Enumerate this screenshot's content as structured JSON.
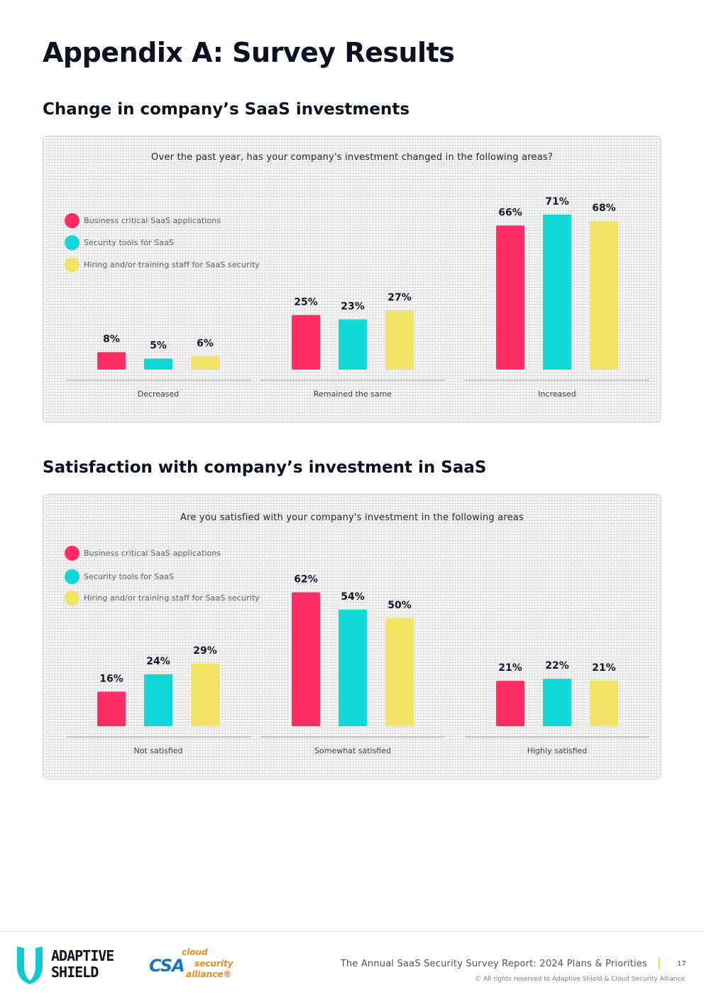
{
  "page_title": "Appendix A: Survey Results",
  "legend": {
    "items": [
      {
        "label": "Business critical SaaS applications",
        "color": "#ff2d64"
      },
      {
        "label": "Security tools for SaaS",
        "color": "#10d8d6"
      },
      {
        "label": "Hiring and/or training staff for SaaS security",
        "color": "#f2e366"
      }
    ]
  },
  "sections": [
    {
      "title": "Change in company’s SaaS investments"
    },
    {
      "title": "Satisfaction with company’s investment in SaaS"
    }
  ],
  "chart_data": [
    {
      "type": "bar",
      "title": "Over the past year, has your company's investment changed in the following areas?",
      "categories": [
        "Decreased",
        "Remained the same",
        "Increased"
      ],
      "series": [
        {
          "name": "Business critical SaaS applications",
          "values": [
            8,
            25,
            66
          ]
        },
        {
          "name": "Security tools for SaaS",
          "values": [
            5,
            23,
            71
          ]
        },
        {
          "name": "Hiring and/or training staff for SaaS security",
          "values": [
            6,
            27,
            68
          ]
        }
      ],
      "unit": "%",
      "ylim": [
        0,
        100
      ]
    },
    {
      "type": "bar",
      "title": "Are you satisfied with your company's investment in the following areas",
      "categories": [
        "Not satisfied",
        "Somewhat satisfied",
        "Highly satisfied"
      ],
      "series": [
        {
          "name": "Business critical SaaS applications",
          "values": [
            16,
            62,
            21
          ]
        },
        {
          "name": "Security tools for SaaS",
          "values": [
            24,
            54,
            22
          ]
        },
        {
          "name": "Hiring and/or training staff for SaaS security",
          "values": [
            29,
            50,
            21
          ]
        }
      ],
      "unit": "%",
      "ylim": [
        0,
        100
      ]
    }
  ],
  "footer": {
    "adaptive_shield_line1": "ADAPTIVE",
    "adaptive_shield_line2": "SHIELD",
    "csa_mark": "CSA",
    "csa_word1": "cloud",
    "csa_word2": "security",
    "csa_word3": "alliance®",
    "report_title": "The Annual SaaS Security Survey Report: 2024 Plans & Priorities",
    "page_number": "17",
    "copyright": "© All rights reserved to Adaptive Shield & Cloud Security Alliance"
  }
}
